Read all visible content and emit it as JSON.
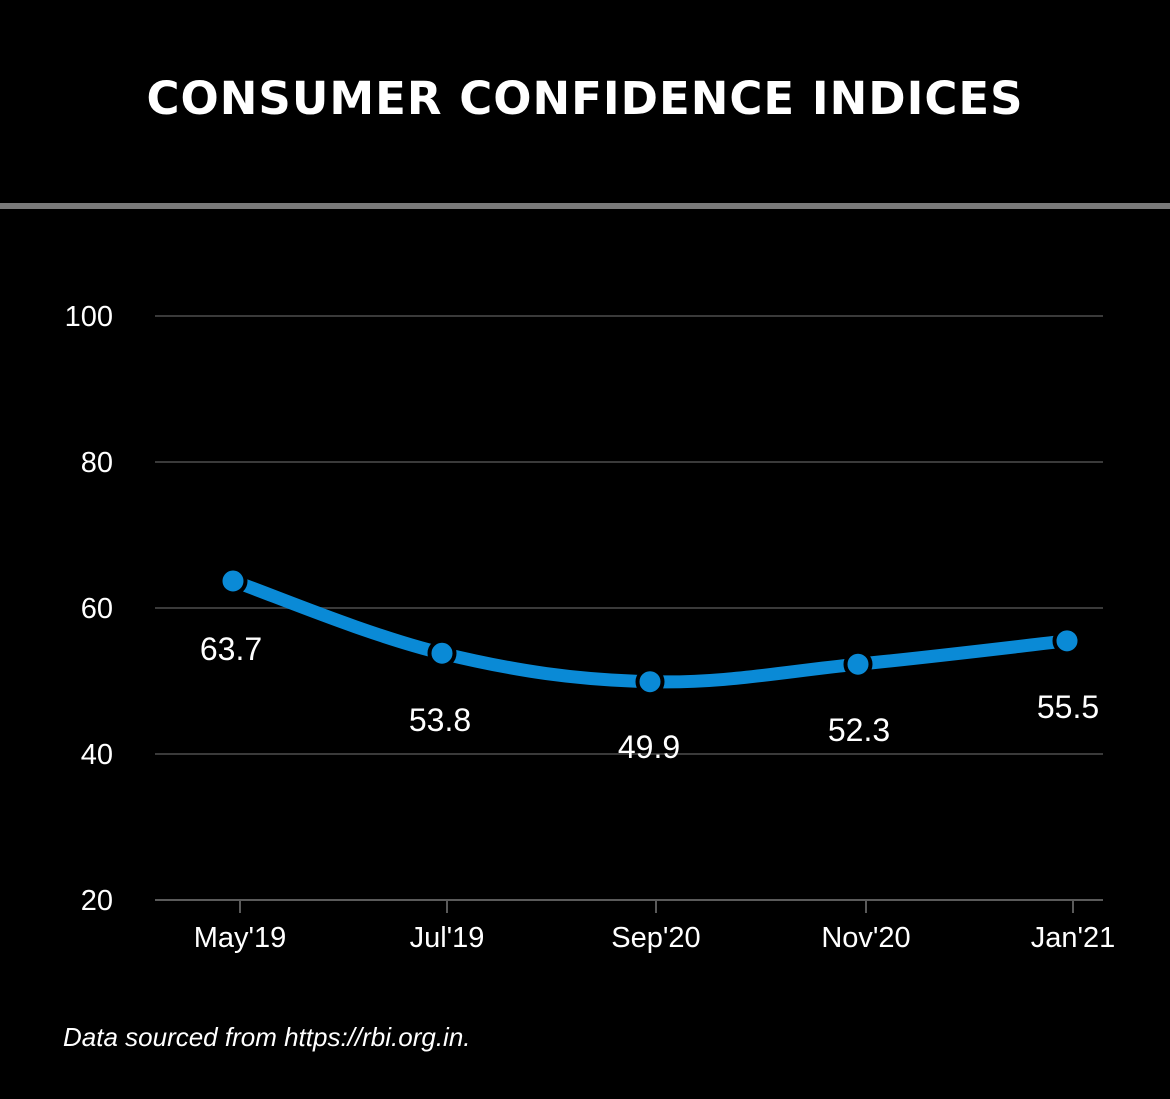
{
  "title": "CONSUMER CONFIDENCE INDICES",
  "source_note": "Data sourced from https://rbi.org.in.",
  "colors": {
    "background": "#000000",
    "line": "#0a8ad6",
    "grid": "#3a3a3a",
    "rule": "#7a7a7a"
  },
  "chart_data": {
    "type": "line",
    "title": "CONSUMER CONFIDENCE INDICES",
    "xlabel": "",
    "ylabel": "",
    "categories": [
      "May'19",
      "Jul'19",
      "Sep'20",
      "Nov'20",
      "Jan'21"
    ],
    "series": [
      {
        "values": [
          63.7,
          53.8,
          49.9,
          52.3,
          55.5
        ]
      }
    ],
    "data_labels": [
      "63.7",
      "53.8",
      "49.9",
      "52.3",
      "55.5"
    ],
    "yticks": [
      20,
      40,
      60,
      80,
      100
    ],
    "ylim": [
      20,
      100
    ],
    "grid": true,
    "legend": "none"
  }
}
